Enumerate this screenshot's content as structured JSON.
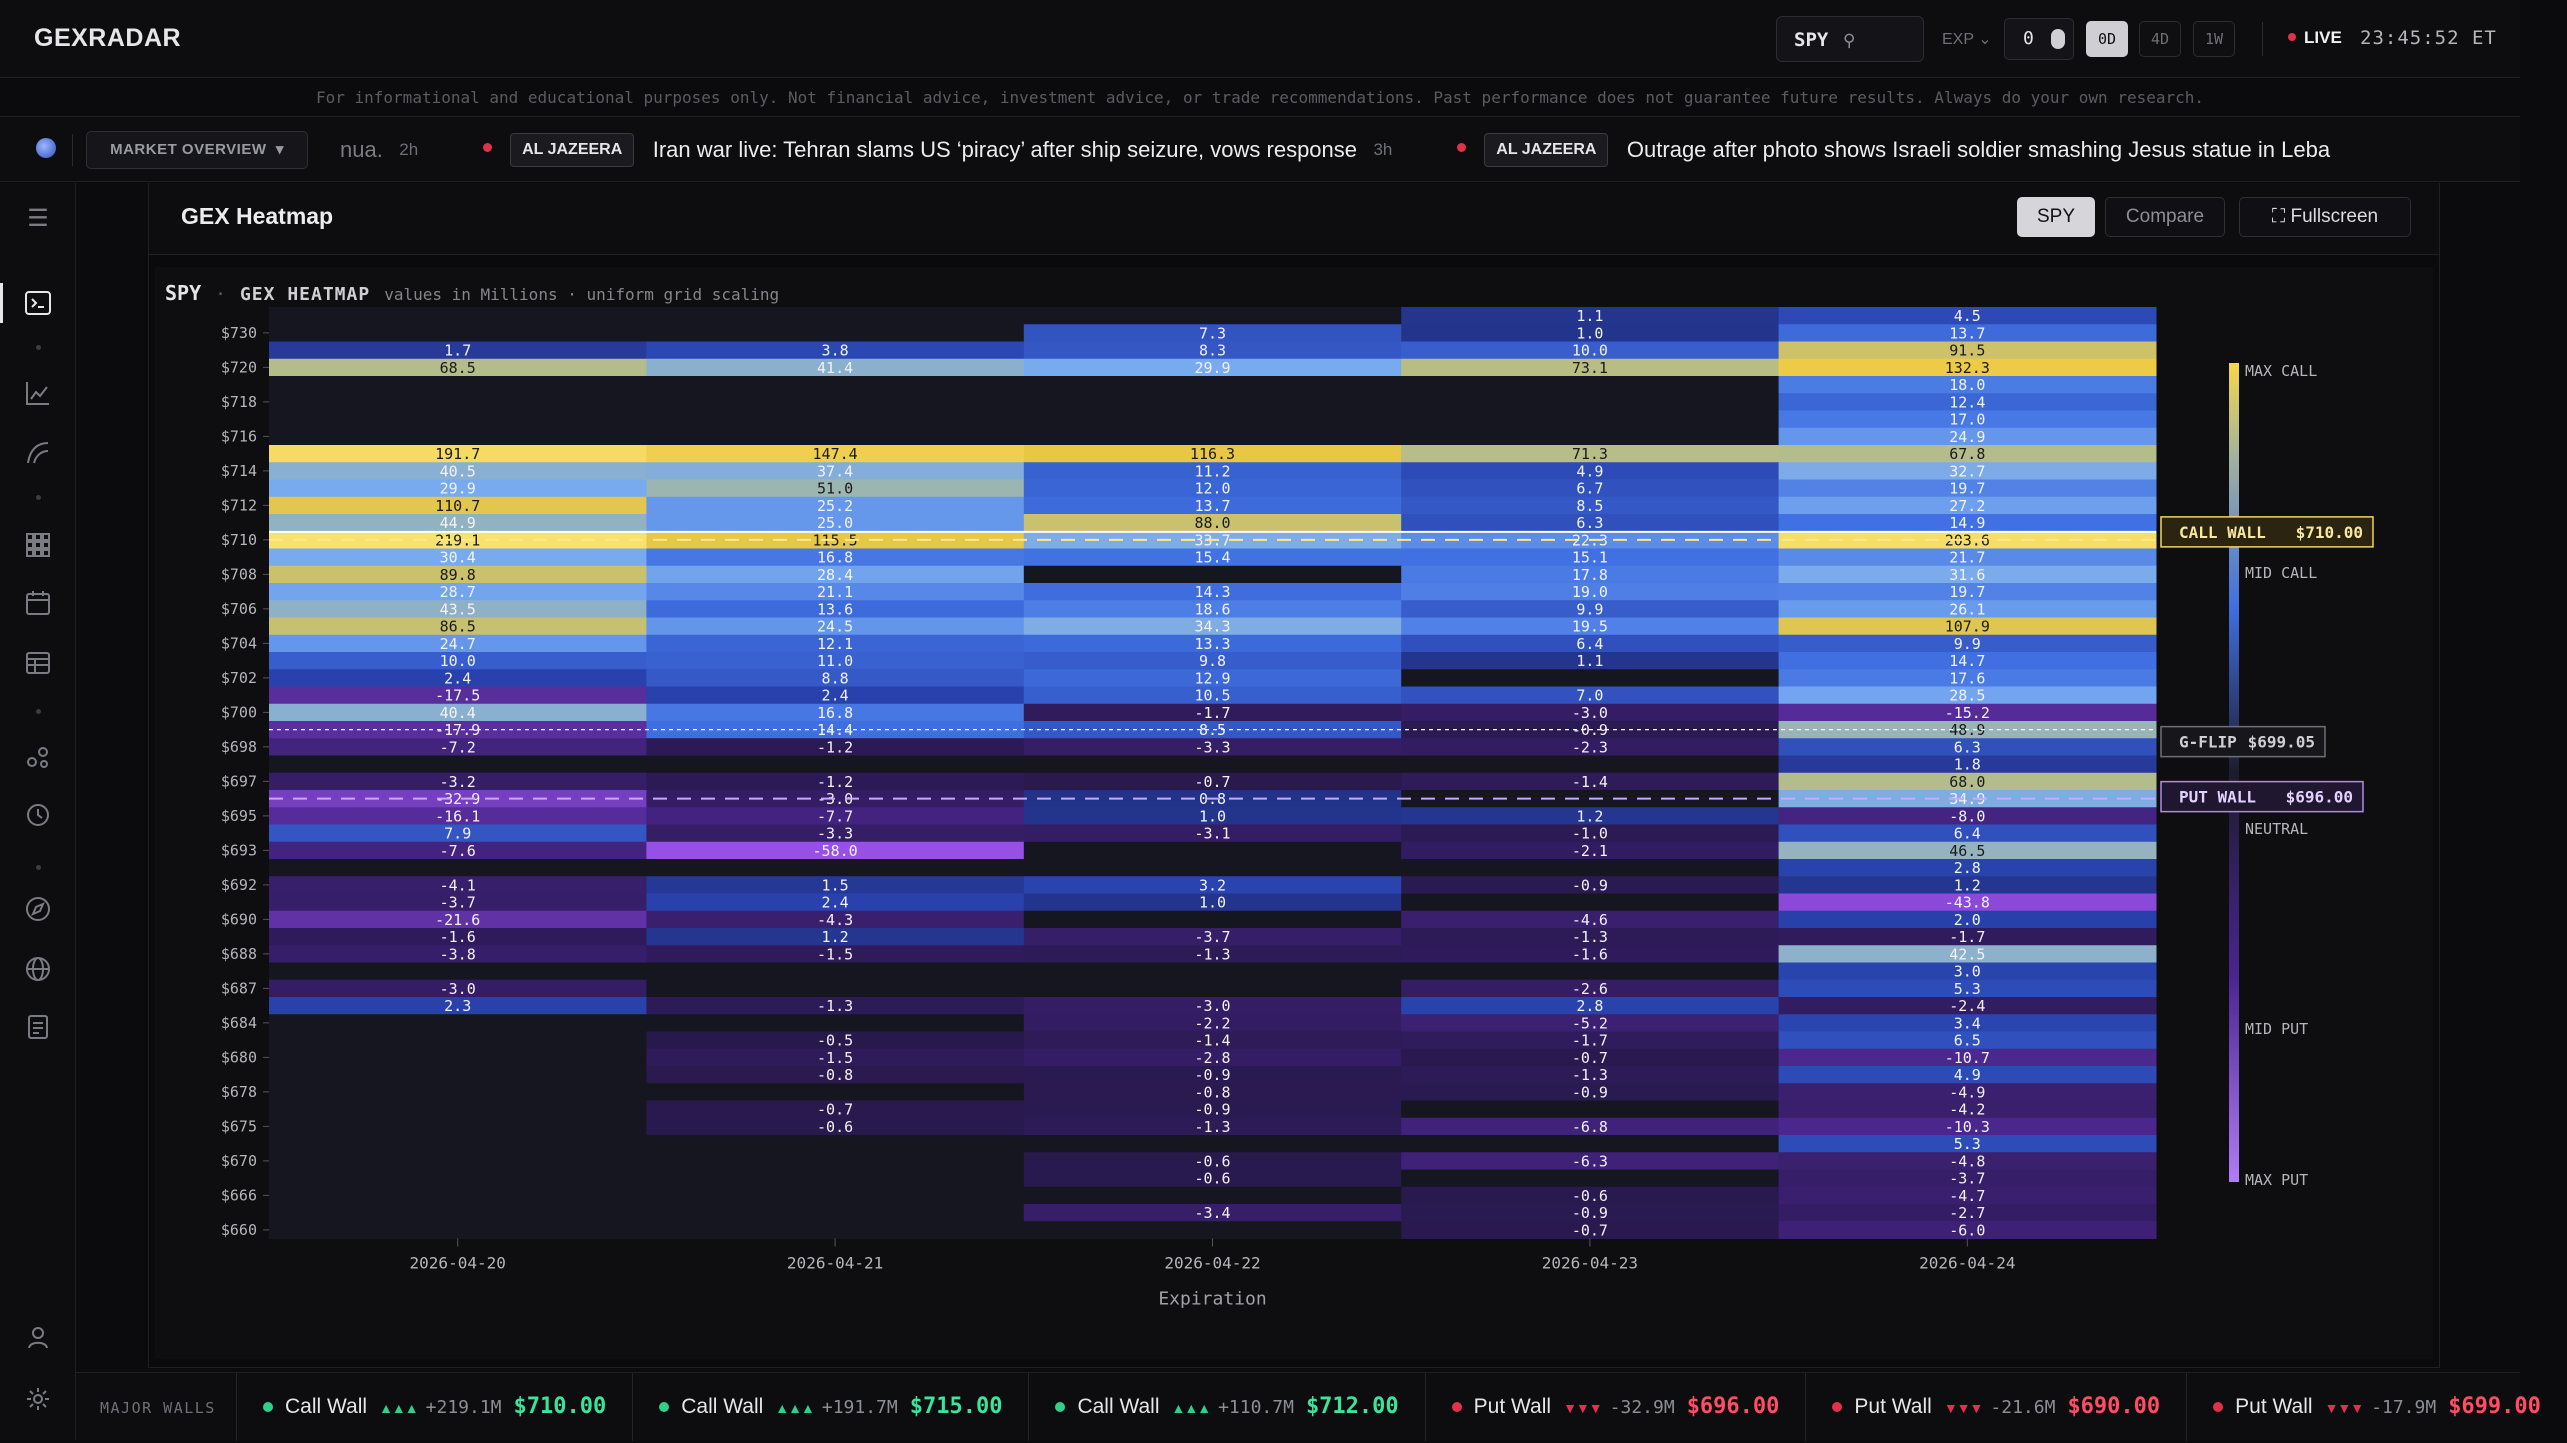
{
  "app": {
    "logo": "GEXRADAR"
  },
  "topbar": {
    "ticker": "SPY",
    "exp_label": "EXP",
    "exp_value": "0",
    "ranges": [
      "0D",
      "4D",
      "1W"
    ],
    "active_range": "0D",
    "live_label": "LIVE",
    "clock": "23:45:52 ET"
  },
  "disclaimer": "For informational and educational purposes only. Not financial advice, investment advice, or trade recommendations. Past performance does not guarantee future results. Always do your own research.",
  "newsbar": {
    "market_button": "MARKET OVERVIEW",
    "items": [
      {
        "source": "",
        "headline": "nua.",
        "age": "2h"
      },
      {
        "source": "AL JAZEERA",
        "headline": "Iran war live: Tehran slams US ‘piracy’ after ship seizure, vows response",
        "age": "3h"
      },
      {
        "source": "AL JAZEERA",
        "headline": "Outrage after photo shows Israeli soldier smashing Jesus statue in Leba",
        "age": ""
      }
    ]
  },
  "panel": {
    "title": "GEX Heatmap",
    "buttons": {
      "spy": "SPY",
      "compare": "Compare",
      "fullscreen": "Fullscreen"
    },
    "subhead": {
      "symbol": "SPY",
      "sep": "·",
      "kind": "GEX HEATMAP",
      "meta": "values in Millions · uniform grid scaling"
    }
  },
  "chart_data": {
    "type": "heatmap",
    "xlabel": "Expiration",
    "columns": [
      "2026-04-20",
      "2026-04-21",
      "2026-04-22",
      "2026-04-23",
      "2026-04-24"
    ],
    "y_tick_labels": [
      "$730",
      "$720",
      "$718",
      "$716",
      "$714",
      "$712",
      "$710",
      "$708",
      "$706",
      "$704",
      "$702",
      "$700",
      "$698",
      "$697",
      "$695",
      "$693",
      "$692",
      "$690",
      "$688",
      "$687",
      "$684",
      "$680",
      "$678",
      "$675",
      "$670",
      "$666",
      "$660"
    ],
    "row_count": 54,
    "row_tick_index": {
      "$730": 1,
      "$720": 3,
      "$718": 5,
      "$716": 7,
      "$714": 9,
      "$712": 11,
      "$710": 13,
      "$708": 15,
      "$706": 17,
      "$704": 19,
      "$702": 21,
      "$700": 23,
      "$698": 25,
      "$697": 27,
      "$695": 29,
      "$693": 31,
      "$692": 33,
      "$690": 35,
      "$688": 37,
      "$687": 39,
      "$684": 41,
      "$680": 43,
      "$678": 45,
      "$675": 47,
      "$670": 49,
      "$666": 51,
      "$660": 53
    },
    "values": [
      [
        null,
        null,
        null,
        1.1,
        4.5
      ],
      [
        null,
        null,
        7.3,
        1.0,
        13.7
      ],
      [
        1.7,
        3.8,
        8.3,
        10.0,
        91.5
      ],
      [
        68.5,
        41.4,
        29.9,
        73.1,
        132.3
      ],
      [
        null,
        null,
        null,
        null,
        18.0
      ],
      [
        null,
        null,
        null,
        null,
        12.4
      ],
      [
        null,
        null,
        null,
        null,
        17.0
      ],
      [
        null,
        null,
        null,
        null,
        24.9
      ],
      [
        191.7,
        147.4,
        116.3,
        71.3,
        67.8
      ],
      [
        40.5,
        37.4,
        11.2,
        4.9,
        32.7
      ],
      [
        29.9,
        51.0,
        12.0,
        6.7,
        19.7
      ],
      [
        110.7,
        25.2,
        13.7,
        8.5,
        27.2
      ],
      [
        44.9,
        25.0,
        88.0,
        6.3,
        14.9
      ],
      [
        219.1,
        115.5,
        33.7,
        22.3,
        203.6
      ],
      [
        30.4,
        16.8,
        15.4,
        15.1,
        21.7
      ],
      [
        89.8,
        28.4,
        null,
        17.8,
        31.6
      ],
      [
        28.7,
        21.1,
        14.3,
        19.0,
        19.7
      ],
      [
        43.5,
        13.6,
        18.6,
        9.9,
        26.1
      ],
      [
        86.5,
        24.5,
        34.3,
        19.5,
        107.9
      ],
      [
        24.7,
        12.1,
        13.3,
        6.4,
        9.9
      ],
      [
        10.0,
        11.0,
        9.8,
        1.1,
        14.7
      ],
      [
        2.4,
        8.8,
        12.9,
        null,
        17.6
      ],
      [
        -17.5,
        2.4,
        10.5,
        7.0,
        28.5
      ],
      [
        40.4,
        16.8,
        -1.7,
        -3.0,
        -15.2
      ],
      [
        -17.9,
        14.4,
        8.5,
        -0.9,
        48.9
      ],
      [
        -7.2,
        -1.2,
        -3.3,
        -2.3,
        6.3
      ],
      [
        null,
        null,
        null,
        null,
        1.8
      ],
      [
        -3.2,
        -1.2,
        -0.7,
        -1.4,
        68.0
      ],
      [
        -32.9,
        -3.0,
        0.8,
        null,
        34.9
      ],
      [
        -16.1,
        -7.7,
        1.0,
        1.2,
        -8.0
      ],
      [
        7.9,
        -3.3,
        -3.1,
        -1.0,
        6.4
      ],
      [
        -7.6,
        -58.0,
        null,
        -2.1,
        46.5
      ],
      [
        null,
        null,
        null,
        null,
        2.8
      ],
      [
        -4.1,
        1.5,
        3.2,
        -0.9,
        1.2
      ],
      [
        -3.7,
        2.4,
        1.0,
        null,
        -43.8
      ],
      [
        -21.6,
        -4.3,
        null,
        -4.6,
        2.0
      ],
      [
        -1.6,
        1.2,
        -3.7,
        -1.3,
        -1.7
      ],
      [
        -3.8,
        -1.5,
        -1.3,
        -1.6,
        42.5
      ],
      [
        null,
        null,
        null,
        null,
        3.0
      ],
      [
        -3.0,
        null,
        null,
        -2.6,
        5.3
      ],
      [
        2.3,
        -1.3,
        -3.0,
        2.8,
        -2.4
      ],
      [
        null,
        null,
        -2.2,
        -5.2,
        3.4
      ],
      [
        null,
        -0.5,
        -1.4,
        -1.7,
        6.5
      ],
      [
        null,
        -1.5,
        -2.8,
        -0.7,
        -10.7
      ],
      [
        null,
        -0.8,
        -0.9,
        -1.3,
        4.9
      ],
      [
        null,
        null,
        -0.8,
        -0.9,
        -4.9
      ],
      [
        null,
        -0.7,
        -0.9,
        null,
        -4.2
      ],
      [
        null,
        -0.6,
        -1.3,
        -6.8,
        -10.3
      ],
      [
        null,
        null,
        null,
        null,
        5.3
      ],
      [
        null,
        null,
        -0.6,
        -6.3,
        -4.8
      ],
      [
        null,
        null,
        -0.6,
        null,
        -3.7
      ],
      [
        null,
        null,
        null,
        -0.6,
        -4.7
      ],
      [
        null,
        null,
        -3.4,
        -0.9,
        -2.7
      ],
      [
        null,
        null,
        null,
        -0.7,
        -6.0
      ]
    ],
    "levels": {
      "call_wall": {
        "label": "CALL WALL",
        "price": "$710.00",
        "row": 13.5
      },
      "g_flip": {
        "label": "G-FLIP",
        "price": "$699.05",
        "row": 24.5
      },
      "put_wall": {
        "label": "PUT WALL",
        "price": "$696.00",
        "row": 28.5
      }
    },
    "legend": [
      "MAX CALL",
      "MID CALL",
      "NEUTRAL",
      "MID PUT",
      "MAX PUT"
    ],
    "colors": {
      "max_call": "#f7d84a",
      "mid_call": "#3f6ee0",
      "neutral": "#1c1c28",
      "mid_put": "#5a2aa8",
      "max_put": "#a35cf5"
    }
  },
  "walls": {
    "label": "MAJOR WALLS",
    "items": [
      {
        "type": "Call Wall",
        "strength": "▲▲▲",
        "gex": "+219.1M",
        "price": "$710.00",
        "kind": "call"
      },
      {
        "type": "Call Wall",
        "strength": "▲▲▲",
        "gex": "+191.7M",
        "price": "$715.00",
        "kind": "call"
      },
      {
        "type": "Call Wall",
        "strength": "▲▲▲",
        "gex": "+110.7M",
        "price": "$712.00",
        "kind": "call"
      },
      {
        "type": "Put Wall",
        "strength": "▼▼▼",
        "gex": "-32.9M",
        "price": "$696.00",
        "kind": "put"
      },
      {
        "type": "Put Wall",
        "strength": "▼▼▼",
        "gex": "-21.6M",
        "price": "$690.00",
        "kind": "put"
      },
      {
        "type": "Put Wall",
        "strength": "▼▼▼",
        "gex": "-17.9M",
        "price": "$699.00",
        "kind": "put"
      }
    ]
  }
}
